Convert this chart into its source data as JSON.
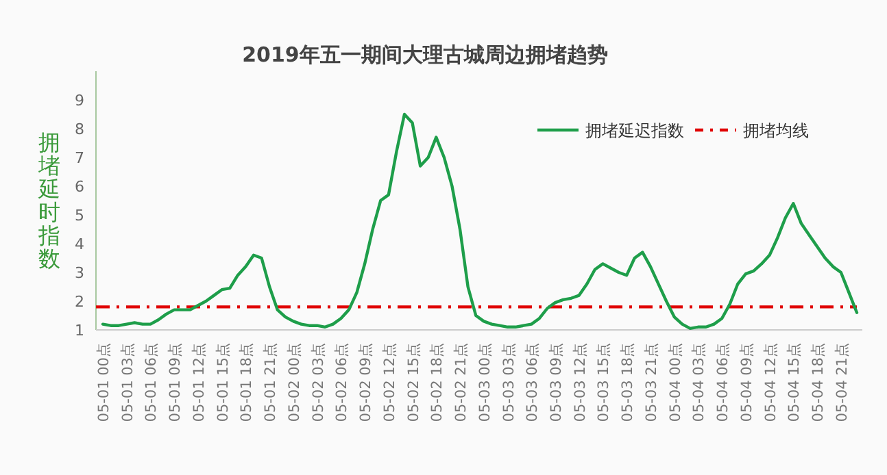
{
  "chart_data": {
    "type": "line",
    "title": "2019年五一期间大理古城周边拥堵趋势",
    "ylabel": "拥堵延时指数",
    "categories": [
      "05-01 00点",
      null,
      null,
      "05-01 03点",
      null,
      null,
      "05-01 06点",
      null,
      null,
      "05-01 09点",
      null,
      null,
      "05-01 12点",
      null,
      null,
      "05-01 15点",
      null,
      null,
      "05-01 18点",
      null,
      null,
      "05-01 21点",
      null,
      null,
      "05-02 00点",
      null,
      null,
      "05-02 03点",
      null,
      null,
      "05-02 06点",
      null,
      null,
      "05-02 09点",
      null,
      null,
      "05-02 12点",
      null,
      null,
      "05-02 15点",
      null,
      null,
      "05-02 18点",
      null,
      null,
      "05-02 21点",
      null,
      null,
      "05-03 00点",
      null,
      null,
      "05-03 03点",
      null,
      null,
      "05-03 06点",
      null,
      null,
      "05-03 09点",
      null,
      null,
      "05-03 12点",
      null,
      null,
      "05-03 15点",
      null,
      null,
      "05-03 18点",
      null,
      null,
      "05-03 21点",
      null,
      null,
      "05-04 00点",
      null,
      null,
      "05-04 03点",
      null,
      null,
      "05-04 06点",
      null,
      null,
      "05-04 09点",
      null,
      null,
      "05-04 12点",
      null,
      null,
      "05-04 15点",
      null,
      null,
      "05-04 18点",
      null,
      null,
      "05-04 21点",
      null,
      null
    ],
    "series": [
      {
        "name": "拥堵延迟指数",
        "color": "#1e9e4a",
        "values": [
          1.2,
          1.15,
          1.15,
          1.2,
          1.25,
          1.2,
          1.2,
          1.35,
          1.55,
          1.7,
          1.7,
          1.7,
          1.85,
          2.0,
          2.2,
          2.4,
          2.45,
          2.9,
          3.2,
          3.6,
          3.5,
          2.5,
          1.7,
          1.45,
          1.3,
          1.2,
          1.15,
          1.15,
          1.1,
          1.2,
          1.4,
          1.7,
          2.3,
          3.3,
          4.5,
          5.5,
          5.7,
          7.2,
          8.5,
          8.2,
          6.7,
          7.0,
          7.7,
          7.0,
          6.0,
          4.5,
          2.5,
          1.5,
          1.3,
          1.2,
          1.15,
          1.1,
          1.1,
          1.15,
          1.2,
          1.4,
          1.75,
          1.95,
          2.05,
          2.1,
          2.2,
          2.6,
          3.1,
          3.3,
          3.15,
          3.0,
          2.9,
          3.5,
          3.7,
          3.2,
          2.6,
          2.0,
          1.45,
          1.2,
          1.05,
          1.1,
          1.1,
          1.2,
          1.4,
          1.9,
          2.6,
          2.95,
          3.05,
          3.3,
          3.6,
          4.2,
          4.9,
          5.4,
          4.7,
          4.3,
          3.9,
          3.5,
          3.2,
          3.0,
          2.3,
          1.6
        ]
      }
    ],
    "ylim": [
      1,
      10
    ],
    "yticks": [
      1,
      2,
      3,
      4,
      5,
      6,
      7,
      8,
      9
    ],
    "ref_lines": [
      {
        "axis": "y",
        "value": 1.8,
        "label": "拥堵均线",
        "color": "#e00000",
        "line_style": "dashdot"
      }
    ],
    "legend": "top right"
  }
}
